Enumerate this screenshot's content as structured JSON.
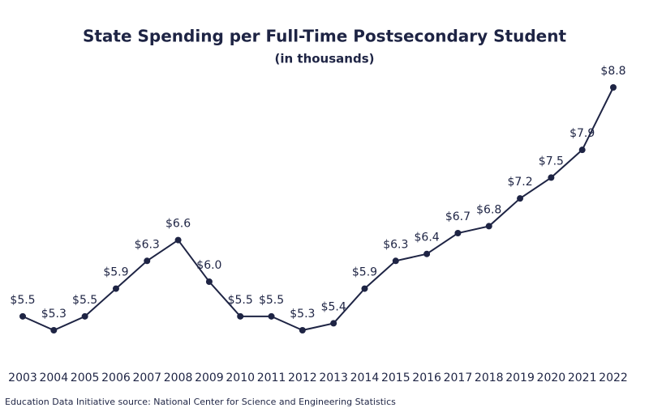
{
  "chart_data": {
    "type": "line",
    "title": "State Spending per Full-Time Postsecondary Student",
    "subtitle": "(in thousands)",
    "source": "Education Data Initiative source: National Center for Science and Engineering Statistics",
    "categories": [
      "2003",
      "2004",
      "2005",
      "2006",
      "2007",
      "2008",
      "2009",
      "2010",
      "2011",
      "2012",
      "2013",
      "2014",
      "2015",
      "2016",
      "2017",
      "2018",
      "2019",
      "2020",
      "2021",
      "2022"
    ],
    "values": [
      5.5,
      5.3,
      5.5,
      5.9,
      6.3,
      6.6,
      6.0,
      5.5,
      5.5,
      5.3,
      5.4,
      5.9,
      6.3,
      6.4,
      6.7,
      6.8,
      7.2,
      7.5,
      7.9,
      8.8
    ],
    "value_labels": [
      "$5.5",
      "$5.3",
      "$5.5",
      "$5.9",
      "$6.3",
      "$6.6",
      "$6.0",
      "$5.5",
      "$5.5",
      "$5.3",
      "$5.4",
      "$5.9",
      "$6.3",
      "$6.4",
      "$6.7",
      "$6.8",
      "$7.2",
      "$7.5",
      "$7.9",
      "$8.8"
    ],
    "color": "#1e2444"
  }
}
